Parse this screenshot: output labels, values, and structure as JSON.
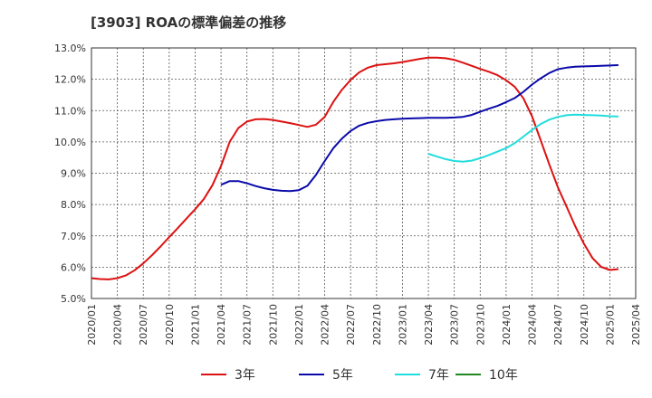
{
  "chart_data": {
    "type": "line",
    "title": "[3903]  ROAの標準偏差の推移",
    "ylim": [
      5.0,
      13.0
    ],
    "y_ticks": [
      "5.0%",
      "6.0%",
      "7.0%",
      "8.0%",
      "9.0%",
      "10.0%",
      "11.0%",
      "12.0%",
      "13.0%"
    ],
    "y_tick_values": [
      5,
      6,
      7,
      8,
      9,
      10,
      11,
      12,
      13
    ],
    "x_ticks": [
      "2020/01",
      "2020/04",
      "2020/07",
      "2020/10",
      "2021/01",
      "2021/04",
      "2021/07",
      "2021/10",
      "2022/01",
      "2022/04",
      "2022/07",
      "2022/10",
      "2023/01",
      "2023/04",
      "2023/07",
      "2023/10",
      "2024/01",
      "2024/04",
      "2024/07",
      "2024/10",
      "2025/01",
      "2025/04"
    ],
    "x_range_months": [
      0,
      63
    ],
    "grid": true,
    "legend_position": "bottom",
    "series": [
      {
        "name": "3年",
        "color": "#dd1111",
        "start_month": 0,
        "values": [
          5.65,
          5.62,
          5.61,
          5.65,
          5.74,
          5.9,
          6.12,
          6.38,
          6.66,
          6.96,
          7.25,
          7.55,
          7.85,
          8.17,
          8.62,
          9.23,
          10.0,
          10.44,
          10.65,
          10.72,
          10.73,
          10.7,
          10.65,
          10.6,
          10.54,
          10.48,
          10.55,
          10.8,
          11.28,
          11.67,
          11.98,
          12.22,
          12.37,
          12.45,
          12.48,
          12.51,
          12.55,
          12.6,
          12.65,
          12.69,
          12.69,
          12.67,
          12.62,
          12.53,
          12.43,
          12.33,
          12.24,
          12.13,
          11.97,
          11.76,
          11.39,
          10.82,
          10.05,
          9.28,
          8.55,
          7.93,
          7.31,
          6.75,
          6.29,
          6.01,
          5.91,
          5.94
        ]
      },
      {
        "name": "5年",
        "color": "#0a0aaa",
        "start_month": 15,
        "values": [
          8.63,
          8.75,
          8.75,
          8.68,
          8.59,
          8.52,
          8.47,
          8.44,
          8.43,
          8.46,
          8.6,
          8.95,
          9.39,
          9.8,
          10.11,
          10.35,
          10.52,
          10.61,
          10.66,
          10.7,
          10.72,
          10.74,
          10.75,
          10.76,
          10.77,
          10.77,
          10.77,
          10.78,
          10.8,
          10.86,
          10.96,
          11.06,
          11.15,
          11.27,
          11.4,
          11.6,
          11.83,
          12.03,
          12.2,
          12.32,
          12.37,
          12.4,
          12.41,
          12.42,
          12.43,
          12.44,
          12.45
        ]
      },
      {
        "name": "7年",
        "color": "#22dddd",
        "start_month": 39,
        "values": [
          9.62,
          9.53,
          9.45,
          9.39,
          9.37,
          9.4,
          9.48,
          9.58,
          9.69,
          9.8,
          9.96,
          10.17,
          10.38,
          10.57,
          10.71,
          10.8,
          10.85,
          10.87,
          10.86,
          10.85,
          10.84,
          10.82,
          10.81
        ]
      },
      {
        "name": "10年",
        "color": "#228822",
        "start_month": 0,
        "values": []
      }
    ]
  }
}
